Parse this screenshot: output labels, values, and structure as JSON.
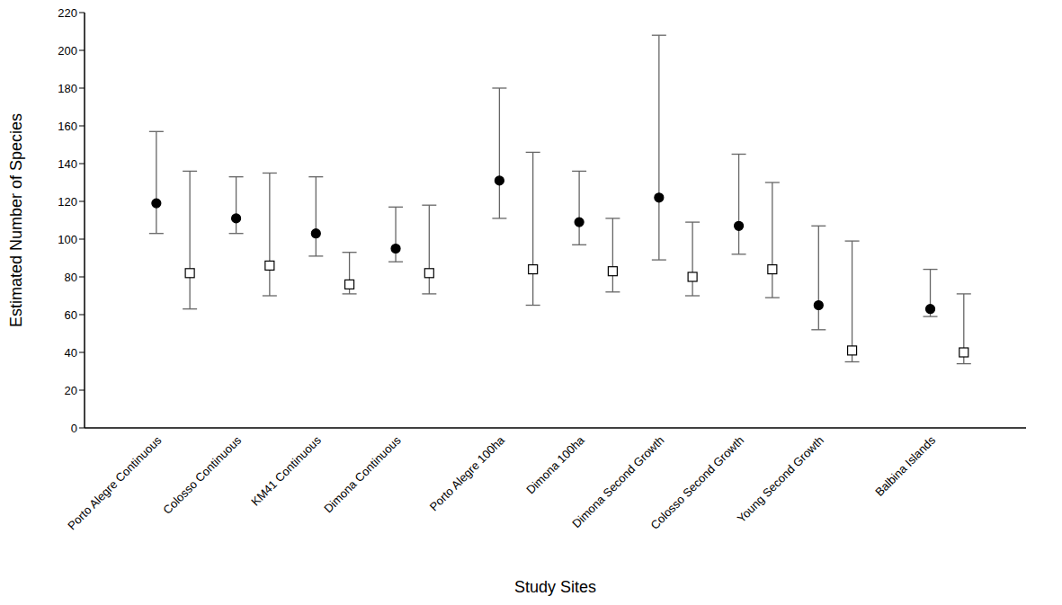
{
  "chart_data": {
    "type": "scatter",
    "x_label": "Study Sites",
    "y_label": "Estimated Number of Species",
    "categories": [
      "Porto Alegre Continuous",
      "Colosso Continuous",
      "KM41 Continuous",
      "Dimona Continuous",
      "Porto Alegre 100ha",
      "Dimona 100ha",
      "Dimona Second Growth",
      "Colosso Second Growth",
      "Young Second Growth",
      "Balbina Islands"
    ],
    "ylim": [
      0,
      220
    ],
    "yticks": [
      0,
      20,
      40,
      60,
      80,
      100,
      120,
      140,
      160,
      180,
      200,
      220
    ],
    "grid": false,
    "series": [
      {
        "color": "#000000",
        "marker": "circle",
        "values": [
          119,
          111,
          103,
          95,
          131,
          109,
          122,
          107,
          65,
          63
        ],
        "error_low": [
          103,
          103,
          91,
          88,
          111,
          97,
          89,
          92,
          52,
          59
        ],
        "error_high": [
          157,
          133,
          133,
          117,
          180,
          136,
          208,
          145,
          107,
          84
        ]
      },
      {
        "color": "#000000",
        "marker": "open-square",
        "values": [
          82,
          86,
          76,
          82,
          84,
          83,
          80,
          84,
          41,
          40
        ],
        "error_low": [
          63,
          70,
          71,
          71,
          65,
          72,
          70,
          69,
          35,
          34
        ],
        "error_high": [
          136,
          135,
          93,
          118,
          146,
          111,
          109,
          130,
          99,
          71
        ]
      }
    ]
  }
}
